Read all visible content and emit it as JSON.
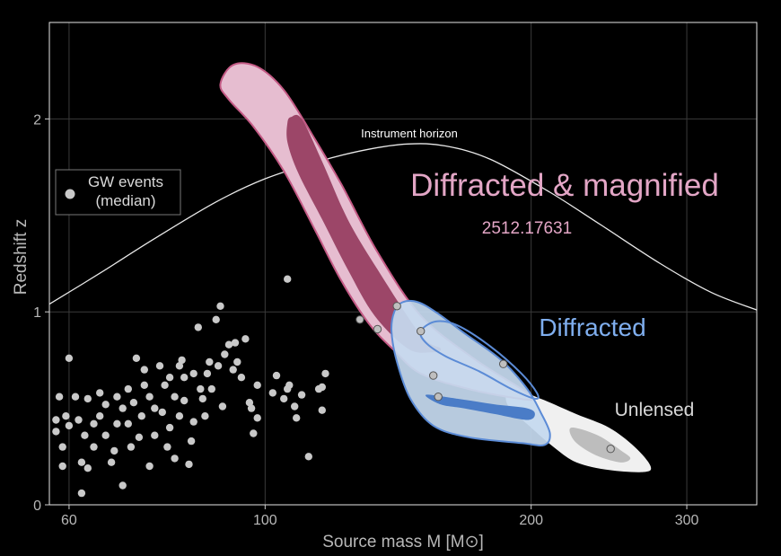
{
  "chart_data": {
    "type": "scatter",
    "xlabel": "Source mass M [M⊙]",
    "ylabel": "Redshift z",
    "xscale": "log",
    "xlim": [
      57,
      360
    ],
    "ylim": [
      0,
      2.5
    ],
    "x_ticks": [
      60,
      100,
      200,
      300
    ],
    "x_tick_labels": [
      "60",
      "100",
      "200",
      "300"
    ],
    "y_ticks": [
      0,
      1,
      2
    ],
    "y_tick_labels": [
      "0",
      "1",
      "2"
    ],
    "grid": true,
    "legend": {
      "label_line1": "GW events",
      "label_line2": "(median)",
      "position": "left"
    },
    "annotations": {
      "title_main": "Diffracted & magnified",
      "arxiv_id": "2512.17631",
      "diffracted": "Diffracted",
      "unlensed": "Unlensed",
      "horizon": "Instrument horizon"
    },
    "colors": {
      "magnified_outer": "#e6bdd0",
      "magnified_inner": "#9c4668",
      "magnified_edge": "#c45a85",
      "diffracted_outer": "#c5d9ef",
      "diffracted_inner": "#4a7cc7",
      "diffracted_edge": "#5b8bd6",
      "unlensed_outer": "#f0f0f0",
      "unlensed_inner": "#bdbdbd",
      "title_pink": "#e3a6c6",
      "diffracted_text": "#7faeee",
      "unlensed_text": "#d8d8d8",
      "points": "#c9c9c9"
    },
    "series": [
      {
        "name": "Instrument horizon",
        "kind": "line",
        "points": [
          [
            57,
            1.04
          ],
          [
            65,
            1.2
          ],
          [
            75,
            1.38
          ],
          [
            88,
            1.57
          ],
          [
            100,
            1.69
          ],
          [
            115,
            1.78
          ],
          [
            130,
            1.84
          ],
          [
            145,
            1.87
          ],
          [
            160,
            1.86
          ],
          [
            180,
            1.79
          ],
          [
            210,
            1.62
          ],
          [
            240,
            1.45
          ],
          [
            280,
            1.25
          ],
          [
            320,
            1.1
          ],
          [
            360,
            1.01
          ]
        ]
      },
      {
        "name": "Diffracted & magnified (outer 90%)",
        "kind": "contour",
        "level": "outer",
        "style": "magnified",
        "points": [
          [
            89,
            2.18
          ],
          [
            92,
            2.28
          ],
          [
            98,
            2.27
          ],
          [
            105,
            2.15
          ],
          [
            113,
            1.92
          ],
          [
            122,
            1.66
          ],
          [
            134,
            1.31
          ],
          [
            150,
            0.98
          ],
          [
            172,
            0.76
          ],
          [
            195,
            0.6
          ],
          [
            201,
            0.55
          ],
          [
            194,
            0.55
          ],
          [
            170,
            0.6
          ],
          [
            150,
            0.68
          ],
          [
            140,
            0.8
          ],
          [
            131,
            0.94
          ],
          [
            122,
            1.16
          ],
          [
            114,
            1.42
          ],
          [
            105,
            1.73
          ],
          [
            97,
            1.96
          ],
          [
            91,
            2.1
          ]
        ]
      },
      {
        "name": "Diffracted & magnified (inner 50%)",
        "kind": "contour",
        "level": "inner",
        "style": "magnified",
        "points": [
          [
            106,
            1.98
          ],
          [
            107,
            2.01
          ],
          [
            110,
            2.0
          ],
          [
            116,
            1.78
          ],
          [
            124,
            1.48
          ],
          [
            134,
            1.22
          ],
          [
            150,
            0.88
          ],
          [
            158,
            0.81
          ],
          [
            154,
            0.79
          ],
          [
            145,
            0.81
          ],
          [
            133,
            0.98
          ],
          [
            124,
            1.22
          ],
          [
            116,
            1.48
          ],
          [
            109,
            1.72
          ],
          [
            106,
            1.88
          ]
        ]
      },
      {
        "name": "Diffracted (outer 90%)",
        "kind": "contour",
        "level": "outer",
        "style": "diffracted",
        "points": [
          [
            140,
            1.0
          ],
          [
            143,
            1.05
          ],
          [
            149,
            1.05
          ],
          [
            157,
            0.99
          ],
          [
            168,
            0.89
          ],
          [
            185,
            0.75
          ],
          [
            198,
            0.6
          ],
          [
            205,
            0.48
          ],
          [
            210,
            0.37
          ],
          [
            207,
            0.31
          ],
          [
            195,
            0.32
          ],
          [
            170,
            0.35
          ],
          [
            155,
            0.41
          ],
          [
            146,
            0.55
          ],
          [
            141,
            0.74
          ],
          [
            139,
            0.9
          ]
        ]
      },
      {
        "name": "Diffracted (second mode outline)",
        "kind": "contour",
        "level": "outline",
        "style": "diffracted",
        "points": [
          [
            150,
            0.9
          ],
          [
            156,
            0.95
          ],
          [
            165,
            0.93
          ],
          [
            180,
            0.82
          ],
          [
            195,
            0.68
          ],
          [
            203,
            0.58
          ],
          [
            202,
            0.55
          ],
          [
            190,
            0.6
          ],
          [
            175,
            0.69
          ],
          [
            160,
            0.77
          ],
          [
            152,
            0.84
          ]
        ]
      },
      {
        "name": "Diffracted (inner 50%)",
        "kind": "contour",
        "level": "inner",
        "style": "diffracted",
        "points": [
          [
            152,
            0.57
          ],
          [
            165,
            0.55
          ],
          [
            182,
            0.52
          ],
          [
            198,
            0.5
          ],
          [
            202,
            0.47
          ],
          [
            198,
            0.44
          ],
          [
            182,
            0.47
          ],
          [
            168,
            0.5
          ],
          [
            158,
            0.52
          ]
        ]
      },
      {
        "name": "Unlensed (outer 90%)",
        "kind": "contour",
        "level": "outer",
        "style": "unlensed",
        "points": [
          [
            190,
            0.6
          ],
          [
            205,
            0.55
          ],
          [
            225,
            0.47
          ],
          [
            245,
            0.4
          ],
          [
            262,
            0.3
          ],
          [
            273,
            0.2
          ],
          [
            268,
            0.17
          ],
          [
            245,
            0.18
          ],
          [
            225,
            0.22
          ],
          [
            212,
            0.3
          ],
          [
            200,
            0.4
          ],
          [
            188,
            0.52
          ]
        ]
      },
      {
        "name": "Unlensed (inner 50%)",
        "kind": "contour",
        "level": "inner",
        "style": "unlensed",
        "points": [
          [
            222,
            0.4
          ],
          [
            238,
            0.36
          ],
          [
            253,
            0.28
          ],
          [
            259,
            0.24
          ],
          [
            252,
            0.22
          ],
          [
            236,
            0.26
          ],
          [
            224,
            0.33
          ]
        ]
      },
      {
        "name": "GW events (median)",
        "kind": "points",
        "points": [
          [
            58,
            0.44
          ],
          [
            58,
            0.38
          ],
          [
            58.5,
            0.56
          ],
          [
            59,
            0.3
          ],
          [
            59.5,
            0.46
          ],
          [
            60,
            0.41
          ],
          [
            59,
            0.2
          ],
          [
            61,
            0.56
          ],
          [
            61.5,
            0.44
          ],
          [
            62,
            0.22
          ],
          [
            62.5,
            0.36
          ],
          [
            60,
            0.76
          ],
          [
            63,
            0.55
          ],
          [
            63,
            0.19
          ],
          [
            64,
            0.42
          ],
          [
            64,
            0.3
          ],
          [
            62,
            0.06
          ],
          [
            65,
            0.58
          ],
          [
            65,
            0.46
          ],
          [
            66,
            0.52
          ],
          [
            66,
            0.36
          ],
          [
            67,
            0.22
          ],
          [
            67.5,
            0.28
          ],
          [
            68,
            0.42
          ],
          [
            68,
            0.56
          ],
          [
            69,
            0.5
          ],
          [
            69,
            0.1
          ],
          [
            70,
            0.6
          ],
          [
            70,
            0.42
          ],
          [
            70.5,
            0.3
          ],
          [
            71,
            0.53
          ],
          [
            71.5,
            0.76
          ],
          [
            72,
            0.35
          ],
          [
            72.5,
            0.46
          ],
          [
            73,
            0.62
          ],
          [
            73,
            0.7
          ],
          [
            74,
            0.56
          ],
          [
            74,
            0.2
          ],
          [
            75,
            0.5
          ],
          [
            75,
            0.36
          ],
          [
            76,
            0.72
          ],
          [
            76.5,
            0.48
          ],
          [
            77,
            0.62
          ],
          [
            77.5,
            0.3
          ],
          [
            78,
            0.66
          ],
          [
            78,
            0.4
          ],
          [
            79,
            0.24
          ],
          [
            79,
            0.56
          ],
          [
            80,
            0.72
          ],
          [
            80,
            0.46
          ],
          [
            80.5,
            0.75
          ],
          [
            81,
            0.66
          ],
          [
            81,
            0.54
          ],
          [
            82,
            0.21
          ],
          [
            82.5,
            0.33
          ],
          [
            83,
            0.68
          ],
          [
            83,
            0.43
          ],
          [
            84,
            0.92
          ],
          [
            84.5,
            0.6
          ],
          [
            85,
            0.55
          ],
          [
            85.5,
            0.46
          ],
          [
            86,
            0.68
          ],
          [
            86.5,
            0.74
          ],
          [
            87,
            0.6
          ],
          [
            88,
            0.96
          ],
          [
            88.5,
            0.72
          ],
          [
            89,
            1.03
          ],
          [
            89.5,
            0.51
          ],
          [
            90,
            0.78
          ],
          [
            91,
            0.83
          ],
          [
            92,
            0.7
          ],
          [
            92.5,
            0.84
          ],
          [
            93,
            0.74
          ],
          [
            94,
            0.66
          ],
          [
            95,
            0.86
          ],
          [
            96,
            0.53
          ],
          [
            96.5,
            0.5
          ],
          [
            97,
            0.37
          ],
          [
            98,
            0.45
          ],
          [
            98,
            0.62
          ],
          [
            102,
            0.58
          ],
          [
            103,
            0.67
          ],
          [
            105,
            0.55
          ],
          [
            106,
            0.6
          ],
          [
            106,
            1.17
          ],
          [
            106.5,
            0.62
          ],
          [
            108,
            0.51
          ],
          [
            108.5,
            0.45
          ],
          [
            110,
            0.57
          ],
          [
            112,
            0.25
          ],
          [
            115,
            0.6
          ],
          [
            116,
            0.49
          ],
          [
            116,
            0.61
          ],
          [
            117,
            0.68
          ],
          [
            128,
            0.96
          ],
          [
            134,
            0.91
          ],
          [
            141,
            1.03
          ],
          [
            150,
            0.9
          ],
          [
            155,
            0.67
          ],
          [
            157,
            0.56
          ],
          [
            186,
            0.73
          ],
          [
            246,
            0.29
          ]
        ]
      }
    ]
  }
}
